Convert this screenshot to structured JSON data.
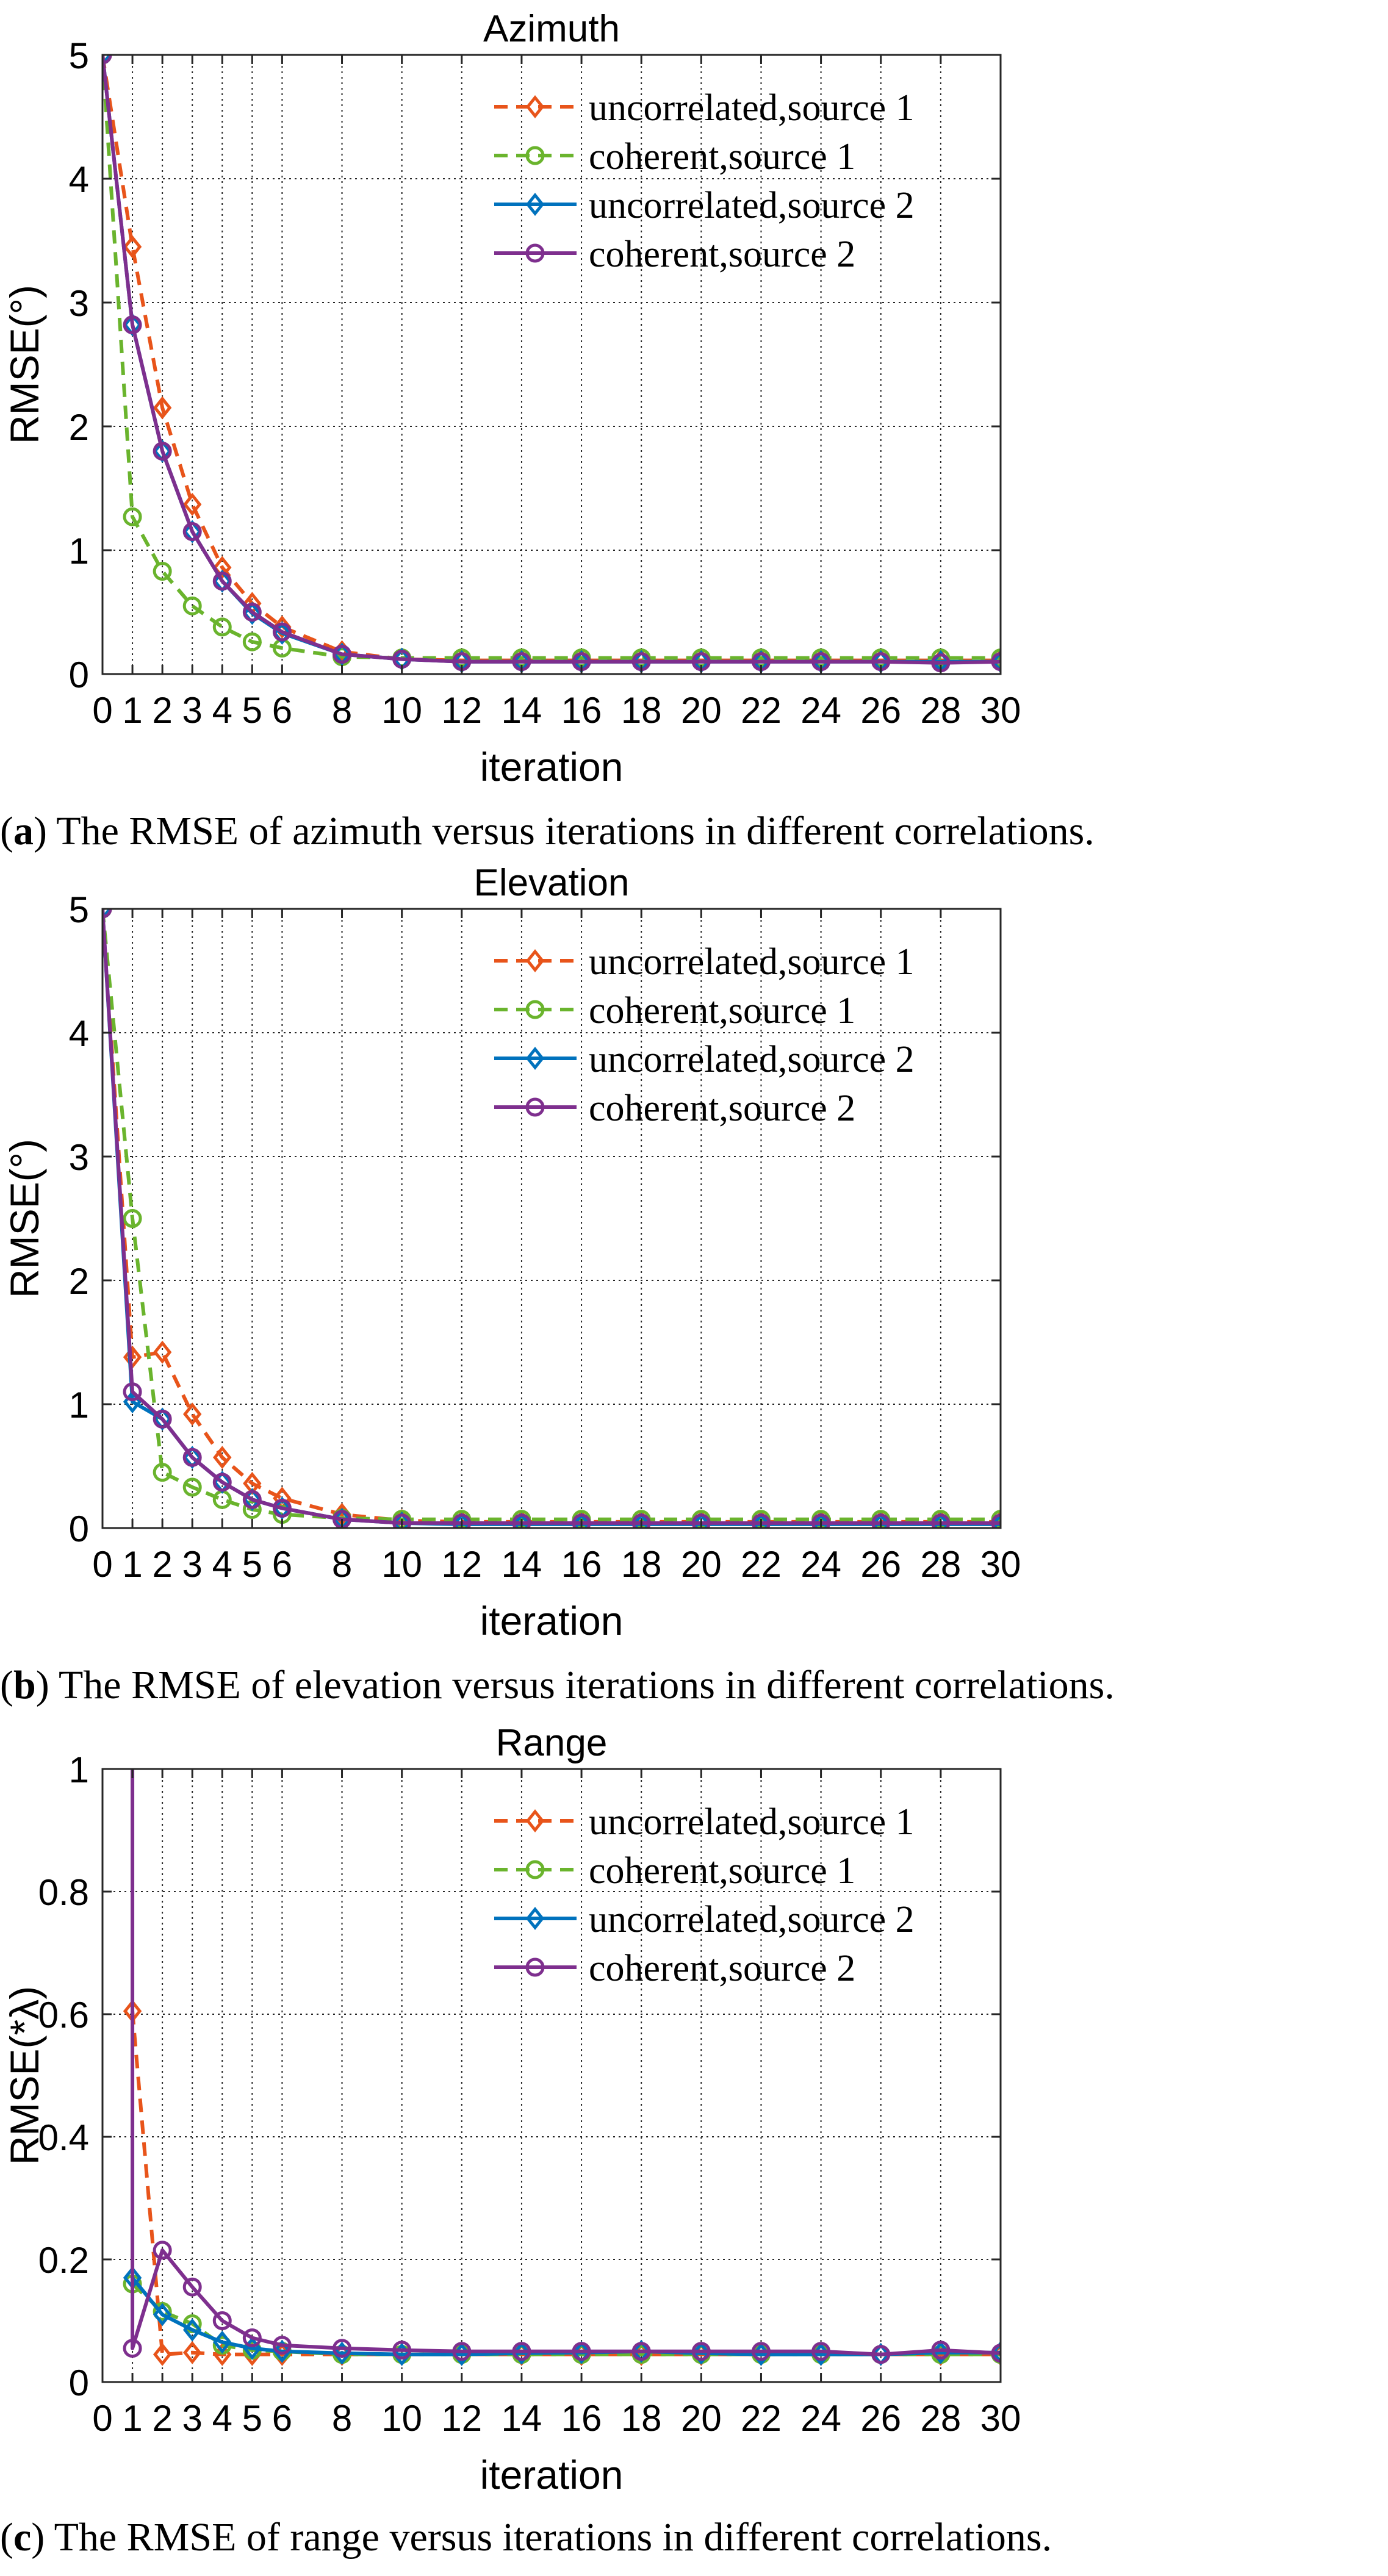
{
  "chart_data": [
    {
      "type": "line",
      "title": "Azimuth",
      "xlabel": "iteration",
      "ylabel": "RMSE(°)",
      "xlim": [
        0,
        30
      ],
      "ylim": [
        0,
        5
      ],
      "grid": true,
      "legend_position": "top-right",
      "xticks": [
        0,
        1,
        2,
        3,
        4,
        5,
        6,
        8,
        10,
        12,
        14,
        16,
        18,
        20,
        22,
        24,
        26,
        28,
        30
      ],
      "yticks": [
        0,
        1,
        2,
        3,
        4,
        5
      ],
      "x": [
        0,
        1,
        2,
        3,
        4,
        5,
        6,
        8,
        10,
        12,
        14,
        16,
        18,
        20,
        22,
        24,
        26,
        28,
        30
      ],
      "series": [
        {
          "name": "uncorrelated,source 1",
          "color": "#e8541a",
          "dash": true,
          "marker": "diamond",
          "values": [
            5.0,
            3.45,
            2.15,
            1.37,
            0.86,
            0.57,
            0.38,
            0.18,
            0.12,
            0.11,
            0.11,
            0.11,
            0.11,
            0.11,
            0.11,
            0.11,
            0.11,
            0.11,
            0.11
          ]
        },
        {
          "name": "coherent,source 1",
          "color": "#6ab42d",
          "dash": true,
          "marker": "circle",
          "values": [
            5.0,
            1.27,
            0.83,
            0.55,
            0.38,
            0.26,
            0.21,
            0.14,
            0.13,
            0.13,
            0.13,
            0.13,
            0.13,
            0.13,
            0.13,
            0.13,
            0.13,
            0.13,
            0.13
          ]
        },
        {
          "name": "uncorrelated,source 2",
          "color": "#0072bd",
          "dash": false,
          "marker": "diamond",
          "values": [
            5.0,
            2.82,
            1.8,
            1.15,
            0.75,
            0.49,
            0.33,
            0.16,
            0.12,
            0.1,
            0.1,
            0.1,
            0.1,
            0.1,
            0.1,
            0.1,
            0.1,
            0.1,
            0.1
          ]
        },
        {
          "name": "coherent,source 2",
          "color": "#7e2f8e",
          "dash": false,
          "marker": "circle",
          "values": [
            5.0,
            2.82,
            1.8,
            1.15,
            0.75,
            0.5,
            0.34,
            0.16,
            0.12,
            0.1,
            0.1,
            0.1,
            0.1,
            0.1,
            0.1,
            0.1,
            0.1,
            0.09,
            0.1
          ]
        }
      ]
    },
    {
      "type": "line",
      "title": "Elevation",
      "xlabel": "iteration",
      "ylabel": "RMSE(°)",
      "xlim": [
        0,
        30
      ],
      "ylim": [
        0,
        5
      ],
      "grid": true,
      "legend_position": "top-right",
      "xticks": [
        0,
        1,
        2,
        3,
        4,
        5,
        6,
        8,
        10,
        12,
        14,
        16,
        18,
        20,
        22,
        24,
        26,
        28,
        30
      ],
      "yticks": [
        0,
        1,
        2,
        3,
        4,
        5
      ],
      "x": [
        0,
        1,
        2,
        3,
        4,
        5,
        6,
        8,
        10,
        12,
        14,
        16,
        18,
        20,
        22,
        24,
        26,
        28,
        30
      ],
      "series": [
        {
          "name": "uncorrelated,source 1",
          "color": "#e8541a",
          "dash": true,
          "marker": "diamond",
          "values": [
            5.0,
            1.38,
            1.42,
            0.92,
            0.57,
            0.36,
            0.24,
            0.11,
            0.06,
            0.05,
            0.05,
            0.05,
            0.05,
            0.05,
            0.05,
            0.05,
            0.05,
            0.05,
            0.05
          ]
        },
        {
          "name": "coherent,source 1",
          "color": "#6ab42d",
          "dash": true,
          "marker": "circle",
          "values": [
            5.0,
            2.5,
            0.45,
            0.33,
            0.23,
            0.15,
            0.11,
            0.08,
            0.07,
            0.07,
            0.07,
            0.07,
            0.07,
            0.07,
            0.07,
            0.07,
            0.07,
            0.07,
            0.07
          ]
        },
        {
          "name": "uncorrelated,source 2",
          "color": "#0072bd",
          "dash": false,
          "marker": "diamond",
          "values": [
            5.0,
            1.02,
            0.88,
            0.57,
            0.37,
            0.23,
            0.16,
            0.07,
            0.04,
            0.03,
            0.03,
            0.03,
            0.03,
            0.03,
            0.03,
            0.03,
            0.03,
            0.03,
            0.03
          ]
        },
        {
          "name": "coherent,source 2",
          "color": "#7e2f8e",
          "dash": false,
          "marker": "circle",
          "values": [
            5.0,
            1.1,
            0.88,
            0.57,
            0.37,
            0.23,
            0.16,
            0.07,
            0.04,
            0.04,
            0.04,
            0.04,
            0.04,
            0.04,
            0.04,
            0.04,
            0.04,
            0.04,
            0.04
          ]
        }
      ]
    },
    {
      "type": "line",
      "title": "Range",
      "xlabel": "iteration",
      "ylabel": "RMSE(*λ)",
      "xlim": [
        0,
        30
      ],
      "ylim": [
        0,
        1
      ],
      "grid": true,
      "legend_position": "top-right",
      "xticks": [
        0,
        1,
        2,
        3,
        4,
        5,
        6,
        8,
        10,
        12,
        14,
        16,
        18,
        20,
        22,
        24,
        26,
        28,
        30
      ],
      "yticks": [
        0,
        0.2,
        0.4,
        0.6,
        0.8,
        1
      ],
      "x": [
        0,
        1,
        2,
        3,
        4,
        5,
        6,
        8,
        10,
        12,
        14,
        16,
        18,
        20,
        22,
        24,
        26,
        28,
        30
      ],
      "series": [
        {
          "name": "uncorrelated,source 1",
          "color": "#e8541a",
          "dash": true,
          "marker": "diamond",
          "start_index": 1,
          "values": [
            null,
            0.605,
            0.045,
            0.048,
            0.045,
            0.045,
            0.045,
            0.045,
            0.045,
            0.045,
            0.045,
            0.045,
            0.045,
            0.045,
            0.045,
            0.045,
            0.045,
            0.045,
            0.045
          ]
        },
        {
          "name": "coherent,source 1",
          "color": "#6ab42d",
          "dash": true,
          "marker": "circle",
          "start_index": 1,
          "values": [
            null,
            0.16,
            0.115,
            0.095,
            0.06,
            0.052,
            0.05,
            0.045,
            0.045,
            0.045,
            0.045,
            0.045,
            0.045,
            0.045,
            0.045,
            0.045,
            0.045,
            0.045,
            0.045
          ]
        },
        {
          "name": "uncorrelated,source 2",
          "color": "#0072bd",
          "dash": false,
          "marker": "diamond",
          "start_index": 1,
          "values": [
            null,
            0.17,
            0.11,
            0.085,
            0.065,
            0.055,
            0.05,
            0.047,
            0.045,
            0.045,
            0.047,
            0.048,
            0.05,
            0.047,
            0.045,
            0.045,
            0.045,
            0.048,
            0.048
          ]
        },
        {
          "name": "coherent,source 2",
          "color": "#7e2f8e",
          "dash": false,
          "marker": "circle",
          "start_index": 1,
          "start_value": 1.2,
          "values": [
            null,
            0.055,
            0.215,
            0.155,
            0.1,
            0.072,
            0.06,
            0.055,
            0.052,
            0.05,
            0.05,
            0.05,
            0.05,
            0.05,
            0.05,
            0.05,
            0.045,
            0.052,
            0.047
          ]
        }
      ]
    }
  ],
  "captions": [
    {
      "label": "(a)",
      "letter": "a",
      "text": " The RMSE of azimuth versus iterations in different correlations."
    },
    {
      "label": "(b)",
      "letter": "b",
      "text": " The RMSE of elevation versus iterations in different correlations."
    },
    {
      "label": "(c)",
      "letter": "c",
      "text": " The RMSE of range versus iterations in different correlations."
    }
  ]
}
